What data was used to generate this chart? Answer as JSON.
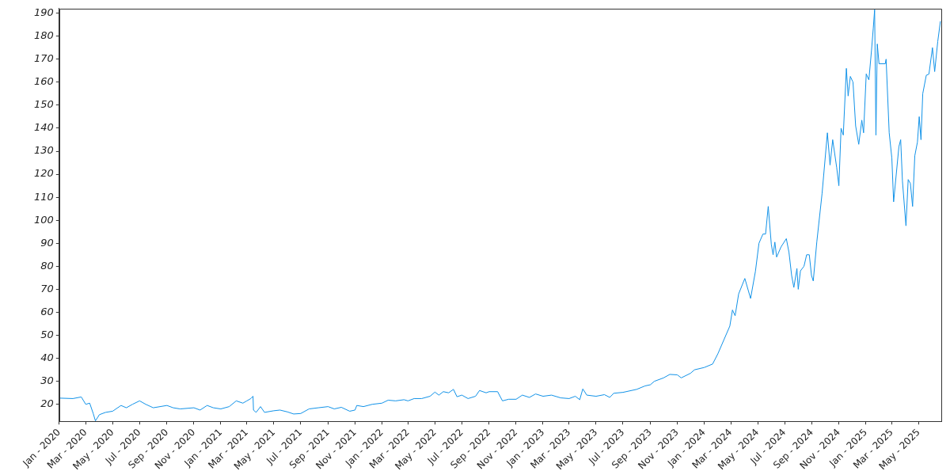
{
  "chart_data": {
    "type": "line",
    "x": [
      "2020-01-01",
      "2020-02-01",
      "2020-02-20",
      "2020-03-01",
      "2020-03-10",
      "2020-03-18",
      "2020-03-23",
      "2020-04-01",
      "2020-04-15",
      "2020-05-01",
      "2020-05-20",
      "2020-06-01",
      "2020-06-15",
      "2020-07-01",
      "2020-07-15",
      "2020-08-01",
      "2020-09-01",
      "2020-09-15",
      "2020-10-01",
      "2020-11-01",
      "2020-11-15",
      "2020-12-01",
      "2020-12-15",
      "2021-01-01",
      "2021-01-20",
      "2021-02-05",
      "2021-02-20",
      "2021-03-01",
      "2021-03-10",
      "2021-03-15",
      "2021-03-16",
      "2021-03-22",
      "2021-04-01",
      "2021-04-10",
      "2021-05-01",
      "2021-05-15",
      "2021-06-01",
      "2021-06-15",
      "2021-07-01",
      "2021-07-20",
      "2021-08-10",
      "2021-09-01",
      "2021-09-15",
      "2021-10-01",
      "2021-10-20",
      "2021-11-01",
      "2021-11-05",
      "2021-11-20",
      "2021-12-10",
      "2022-01-01",
      "2022-01-15",
      "2022-02-01",
      "2022-02-20",
      "2022-03-01",
      "2022-03-15",
      "2022-04-01",
      "2022-04-20",
      "2022-05-01",
      "2022-05-10",
      "2022-05-20",
      "2022-06-01",
      "2022-06-12",
      "2022-06-20",
      "2022-07-01",
      "2022-07-15",
      "2022-08-01",
      "2022-08-10",
      "2022-08-25",
      "2022-09-01",
      "2022-09-20",
      "2022-10-01",
      "2022-10-15",
      "2022-11-01",
      "2022-11-15",
      "2022-12-01",
      "2022-12-15",
      "2023-01-01",
      "2023-01-20",
      "2023-02-10",
      "2023-03-01",
      "2023-03-15",
      "2023-03-25",
      "2023-04-01",
      "2023-04-10",
      "2023-05-01",
      "2023-05-20",
      "2023-06-01",
      "2023-06-10",
      "2023-07-01",
      "2023-08-01",
      "2023-08-20",
      "2023-09-01",
      "2023-09-10",
      "2023-10-01",
      "2023-10-15",
      "2023-11-01",
      "2023-11-10",
      "2023-12-01",
      "2023-12-10",
      "2024-01-01",
      "2024-01-20",
      "2024-02-01",
      "2024-02-28",
      "2024-03-05",
      "2024-03-11",
      "2024-03-19",
      "2024-04-02",
      "2024-04-15",
      "2024-04-26",
      "2024-05-04",
      "2024-05-13",
      "2024-05-19",
      "2024-05-25",
      "2024-06-01",
      "2024-06-05",
      "2024-06-09",
      "2024-06-13",
      "2024-06-23",
      "2024-07-05",
      "2024-07-11",
      "2024-07-17",
      "2024-07-22",
      "2024-07-29",
      "2024-08-01",
      "2024-08-06",
      "2024-08-14",
      "2024-08-20",
      "2024-08-26",
      "2024-08-31",
      "2024-09-04",
      "2024-09-12",
      "2024-09-24",
      "2024-10-06",
      "2024-10-12",
      "2024-10-18",
      "2024-10-27",
      "2024-11-01",
      "2024-11-06",
      "2024-11-11",
      "2024-11-18",
      "2024-11-22",
      "2024-11-27",
      "2024-12-03",
      "2024-12-09",
      "2024-12-16",
      "2024-12-23",
      "2024-12-27",
      "2025-01-02",
      "2025-01-08",
      "2025-01-14",
      "2025-01-18",
      "2025-01-21",
      "2025-01-24",
      "2025-01-27",
      "2025-01-31",
      "2025-02-14",
      "2025-02-16",
      "2025-02-23",
      "2025-03-01",
      "2025-03-05",
      "2025-03-17",
      "2025-03-21",
      "2025-03-25",
      "2025-04-02",
      "2025-04-07",
      "2025-04-12",
      "2025-04-17",
      "2025-04-22",
      "2025-04-28",
      "2025-05-02",
      "2025-05-06",
      "2025-05-10",
      "2025-05-18",
      "2025-05-24",
      "2025-06-01",
      "2025-06-06",
      "2025-06-13",
      "2025-06-19"
    ],
    "series": [
      {
        "color": "#1192e8",
        "values": [
          22.7,
          22.5,
          23.2,
          20,
          20.5,
          16,
          12.8,
          15.5,
          16.5,
          17,
          19.5,
          18.5,
          20,
          21.5,
          20,
          18.5,
          19.5,
          18.5,
          18,
          18.5,
          17.5,
          19.5,
          18.5,
          18,
          19,
          21.5,
          20.5,
          21.5,
          22.5,
          23.5,
          17.5,
          16.5,
          19,
          16.5,
          17.2,
          17.5,
          16.7,
          15.8,
          16,
          18,
          18.5,
          19,
          18,
          18.7,
          17,
          17.5,
          19.5,
          19,
          20,
          20.5,
          21.8,
          21.5,
          22,
          21.5,
          22.5,
          22.5,
          23.5,
          25.3,
          24,
          25.5,
          25,
          26.5,
          23.3,
          24,
          22.5,
          23.5,
          26,
          25,
          25.5,
          25.5,
          21.5,
          22.2,
          22.2,
          24,
          23,
          24.5,
          23.5,
          24,
          22.8,
          22.5,
          23.5,
          22,
          26.7,
          24,
          23.5,
          24.2,
          23,
          24.8,
          25.2,
          26.5,
          28,
          28.5,
          30,
          31.5,
          33,
          32.8,
          31.5,
          33.5,
          35,
          36,
          37.5,
          42,
          54,
          61,
          58.5,
          68,
          74.7,
          66,
          77.8,
          90,
          94,
          94,
          106,
          89.5,
          85,
          90.5,
          84,
          88.4,
          92,
          86,
          76,
          70.8,
          79,
          70,
          78,
          80,
          85,
          85,
          76,
          73.6,
          90.5,
          111.7,
          138,
          124,
          135,
          123,
          115,
          140,
          137,
          166,
          154,
          162.5,
          160,
          141,
          133,
          143.5,
          138,
          163.6,
          161,
          174,
          183.6,
          191.5,
          137,
          176.6,
          168,
          168,
          170,
          138,
          127,
          108,
          132,
          135,
          117,
          97.6,
          117.7,
          116,
          106,
          128,
          134,
          145,
          135,
          155,
          163,
          163.5,
          175,
          164.6,
          177.7,
          186.5
        ]
      }
    ],
    "xlim": [
      "2020-01-01",
      "2025-06-21"
    ],
    "ylim": [
      12.6,
      192
    ],
    "yticks": [
      20,
      30,
      40,
      50,
      60,
      70,
      80,
      90,
      100,
      110,
      120,
      130,
      140,
      150,
      160,
      170,
      180,
      190
    ],
    "xticks": [
      {
        "value": "2020-01-01",
        "label": "Jan - 2020"
      },
      {
        "value": "2020-03-01",
        "label": "Mar - 2020"
      },
      {
        "value": "2020-05-01",
        "label": "May - 2020"
      },
      {
        "value": "2020-07-01",
        "label": "Jul - 2020"
      },
      {
        "value": "2020-09-01",
        "label": "Sep - 2020"
      },
      {
        "value": "2020-11-01",
        "label": "Nov - 2020"
      },
      {
        "value": "2021-01-01",
        "label": "Jan - 2021"
      },
      {
        "value": "2021-03-01",
        "label": "Mar - 2021"
      },
      {
        "value": "2021-05-01",
        "label": "May - 2021"
      },
      {
        "value": "2021-07-01",
        "label": "Jul - 2021"
      },
      {
        "value": "2021-09-01",
        "label": "Sep - 2021"
      },
      {
        "value": "2021-11-01",
        "label": "Nov - 2021"
      },
      {
        "value": "2022-01-01",
        "label": "Jan - 2022"
      },
      {
        "value": "2022-03-01",
        "label": "Mar - 2022"
      },
      {
        "value": "2022-05-01",
        "label": "May - 2022"
      },
      {
        "value": "2022-07-01",
        "label": "Jul - 2022"
      },
      {
        "value": "2022-09-01",
        "label": "Sep - 2022"
      },
      {
        "value": "2022-11-01",
        "label": "Nov - 2022"
      },
      {
        "value": "2023-01-01",
        "label": "Jan - 2023"
      },
      {
        "value": "2023-03-01",
        "label": "Mar - 2023"
      },
      {
        "value": "2023-05-01",
        "label": "May - 2023"
      },
      {
        "value": "2023-07-01",
        "label": "Jul - 2023"
      },
      {
        "value": "2023-09-01",
        "label": "Sep - 2023"
      },
      {
        "value": "2023-11-01",
        "label": "Nov - 2023"
      },
      {
        "value": "2024-01-01",
        "label": "Jan - 2024"
      },
      {
        "value": "2024-03-01",
        "label": "Mar - 2024"
      },
      {
        "value": "2024-05-01",
        "label": "May - 2024"
      },
      {
        "value": "2024-07-01",
        "label": "Jul - 2024"
      },
      {
        "value": "2024-09-01",
        "label": "Sep - 2024"
      },
      {
        "value": "2024-11-01",
        "label": "Nov - 2024"
      },
      {
        "value": "2025-01-01",
        "label": "Jan - 2025"
      },
      {
        "value": "2025-03-01",
        "label": "Mar - 2025"
      },
      {
        "value": "2025-05-01",
        "label": "May - 2025"
      }
    ],
    "grid": false,
    "legend": false,
    "marker": "none",
    "line_style": "solid"
  }
}
